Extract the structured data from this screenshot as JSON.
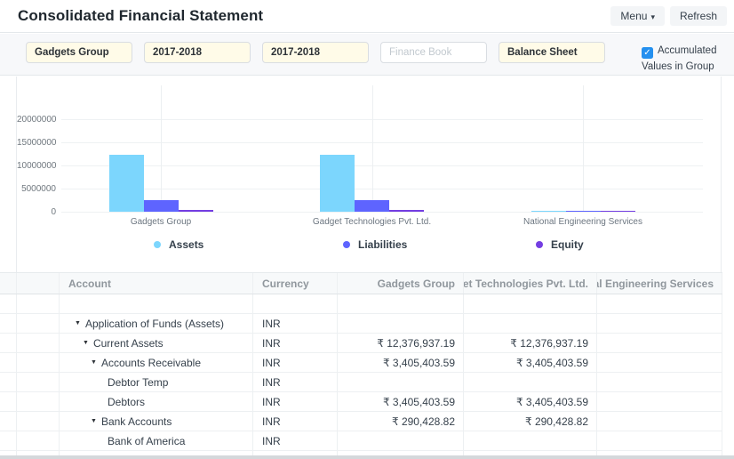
{
  "page": {
    "title": "Consolidated Financial Statement",
    "menu_button": "Menu",
    "refresh_button": "Refresh"
  },
  "filters": {
    "company": "Gadgets Group",
    "from_fiscal_year": "2017-2018",
    "to_fiscal_year": "2017-2018",
    "finance_book_placeholder": "Finance Book",
    "report": "Balance Sheet",
    "accumulated_label": "Accumulated Values in Group Company",
    "accumulated_checked": true
  },
  "chart_data": {
    "type": "bar",
    "categories": [
      "Gadgets Group",
      "Gadget Technologies Pvt. Ltd.",
      "National Engineering Services"
    ],
    "series": [
      {
        "name": "Assets",
        "color": "#7cd6fd",
        "values": [
          12376937,
          12376937,
          200000
        ]
      },
      {
        "name": "Liabilities",
        "color": "#5e64ff",
        "values": [
          2500000,
          2500000,
          250000
        ]
      },
      {
        "name": "Equity",
        "color": "#743ee2",
        "values": [
          320000,
          320000,
          150000
        ]
      }
    ],
    "title": "",
    "xlabel": "",
    "ylabel": "",
    "ylim": [
      0,
      20000000
    ],
    "yticks": [
      "20000000",
      "15000000",
      "10000000",
      "5000000",
      "0"
    ],
    "grid": true,
    "legend_position": "bottom"
  },
  "table": {
    "columns": [
      "",
      "",
      "Account",
      "Currency",
      "Gadgets Group",
      "Gadget Technologies Pvt. Ltd.",
      "National Engineering Services"
    ],
    "rows": [
      {
        "account": "",
        "depth": 0,
        "expandable": false,
        "currency": "",
        "gadgets_group": "",
        "gadget_technologies": "",
        "national_engineering": ""
      },
      {
        "account": "Application of Funds (Assets)",
        "depth": 1,
        "expandable": true,
        "currency": "INR",
        "gadgets_group": "",
        "gadget_technologies": "",
        "national_engineering": ""
      },
      {
        "account": "Current Assets",
        "depth": 2,
        "expandable": true,
        "currency": "INR",
        "gadgets_group": "₹ 12,376,937.19",
        "gadget_technologies": "₹ 12,376,937.19",
        "national_engineering": ""
      },
      {
        "account": "Accounts Receivable",
        "depth": 3,
        "expandable": true,
        "currency": "INR",
        "gadgets_group": "₹ 3,405,403.59",
        "gadget_technologies": "₹ 3,405,403.59",
        "national_engineering": ""
      },
      {
        "account": "Debtor Temp",
        "depth": 4,
        "expandable": false,
        "currency": "INR",
        "gadgets_group": "",
        "gadget_technologies": "",
        "national_engineering": ""
      },
      {
        "account": "Debtors",
        "depth": 4,
        "expandable": false,
        "currency": "INR",
        "gadgets_group": "₹ 3,405,403.59",
        "gadget_technologies": "₹ 3,405,403.59",
        "national_engineering": ""
      },
      {
        "account": "Bank Accounts",
        "depth": 3,
        "expandable": true,
        "currency": "INR",
        "gadgets_group": "₹ 290,428.82",
        "gadget_technologies": "₹ 290,428.82",
        "national_engineering": ""
      },
      {
        "account": "Bank of America",
        "depth": 4,
        "expandable": false,
        "currency": "INR",
        "gadgets_group": "",
        "gadget_technologies": "",
        "national_engineering": ""
      }
    ]
  }
}
